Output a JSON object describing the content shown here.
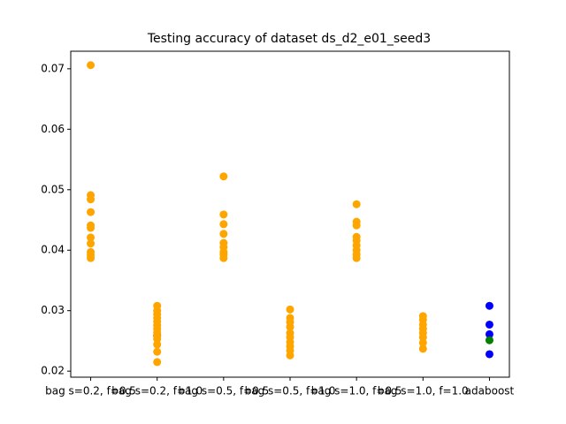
{
  "chart_data": {
    "type": "scatter",
    "title": "Testing accuracy of dataset ds_d2_e01_seed3",
    "categories": [
      "bag s=0.2, f=0.5",
      "bag s=0.2, f=1.0",
      "bag s=0.5, f=0.5",
      "bag s=0.5, f=1.0",
      "bag s=1.0, f=0.5",
      "bag s=1.0, f=1.0",
      "adaboost"
    ],
    "xlim": [
      -0.3,
      6.3
    ],
    "ylim": [
      0.019,
      0.0729
    ],
    "yticks": [
      0.02,
      0.03,
      0.04,
      0.05,
      0.06,
      0.07
    ],
    "series": [
      {
        "color": "#cc0000",
        "x": [
          1
        ],
        "values": [
          0.0259
        ]
      },
      {
        "color": "#ffa500",
        "x": [
          0,
          0,
          0,
          0,
          0,
          0,
          0,
          0,
          0,
          0,
          0,
          1,
          1,
          1,
          1,
          1,
          1,
          1,
          1,
          1,
          1,
          1,
          1,
          1,
          2,
          2,
          2,
          2,
          2,
          2,
          2,
          2,
          2,
          3,
          3,
          3,
          3,
          3,
          3,
          3,
          3,
          3,
          3,
          4,
          4,
          4,
          4,
          4,
          4,
          4,
          4,
          4,
          5,
          5,
          5,
          5,
          5,
          5,
          5,
          5
        ],
        "values": [
          0.0706,
          0.0491,
          0.0484,
          0.0463,
          0.0441,
          0.0437,
          0.0421,
          0.0411,
          0.0397,
          0.0392,
          0.0387,
          0.0308,
          0.03,
          0.0294,
          0.0288,
          0.0282,
          0.0276,
          0.027,
          0.0264,
          0.0258,
          0.0253,
          0.0244,
          0.0232,
          0.0215,
          0.0522,
          0.0459,
          0.0443,
          0.0427,
          0.0412,
          0.0405,
          0.0397,
          0.0393,
          0.0387,
          0.0302,
          0.0288,
          0.0281,
          0.0273,
          0.0263,
          0.0256,
          0.0248,
          0.0241,
          0.0234,
          0.0226,
          0.0476,
          0.0447,
          0.0441,
          0.0422,
          0.0416,
          0.0408,
          0.04,
          0.0393,
          0.0387,
          0.0291,
          0.0285,
          0.0277,
          0.027,
          0.0263,
          0.0256,
          0.0247,
          0.0237
        ]
      },
      {
        "color": "#0000ff",
        "x": [
          6,
          6,
          6,
          6
        ],
        "values": [
          0.0308,
          0.0277,
          0.0261,
          0.0228
        ]
      },
      {
        "color": "#008000",
        "x": [
          6
        ],
        "values": [
          0.0251
        ]
      }
    ]
  }
}
